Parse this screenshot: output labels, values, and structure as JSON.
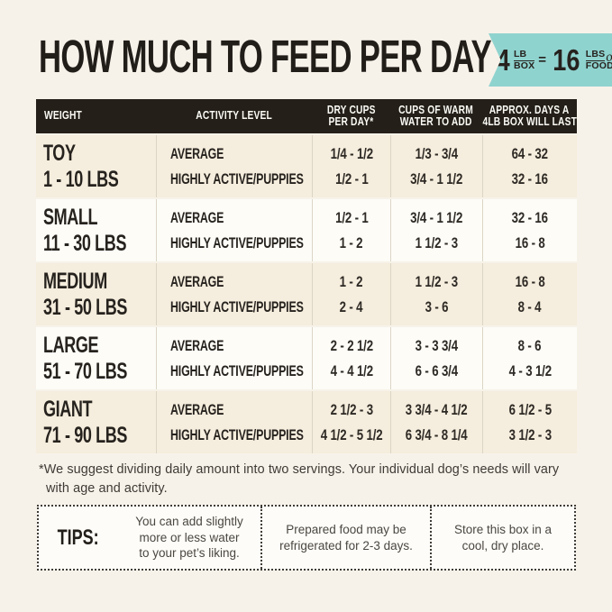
{
  "header": {
    "title": "HOW MUCH TO FEED PER DAY",
    "badge": {
      "left_qty": "4",
      "left_unit_top": "LB",
      "left_unit_bottom": "BOX",
      "equals": "=",
      "right_qty": "16",
      "right_unit_top": "LBS",
      "right_unit_script": "of",
      "right_unit_bottom": "FOOD!"
    }
  },
  "table": {
    "columns": {
      "weight": "WEIGHT",
      "activity": "ACTIVITY LEVEL",
      "cups_line1": "DRY CUPS",
      "cups_line2": "PER DAY*",
      "water_line1": "CUPS OF WARM",
      "water_line2": "WATER TO ADD",
      "days_line1": "APPROX. DAYS A",
      "days_line2": "4LB BOX WILL LAST"
    },
    "rows": [
      {
        "weight_name": "TOY",
        "weight_range": "1 - 10 LBS",
        "activity_avg": "AVERAGE",
        "activity_high": "HIGHLY ACTIVE/PUPPIES",
        "cups_avg": "1/4 - 1/2",
        "cups_high": "1/2 - 1",
        "water_avg": "1/3 - 3/4",
        "water_high": "3/4 - 1 1/2",
        "days_avg": "64 - 32",
        "days_high": "32 - 16"
      },
      {
        "weight_name": "SMALL",
        "weight_range": "11 - 30 LBS",
        "activity_avg": "AVERAGE",
        "activity_high": "HIGHLY ACTIVE/PUPPIES",
        "cups_avg": "1/2 - 1",
        "cups_high": "1 - 2",
        "water_avg": "3/4 - 1 1/2",
        "water_high": "1 1/2 - 3",
        "days_avg": "32 - 16",
        "days_high": "16 - 8"
      },
      {
        "weight_name": "MEDIUM",
        "weight_range": "31 - 50 LBS",
        "activity_avg": "AVERAGE",
        "activity_high": "HIGHLY ACTIVE/PUPPIES",
        "cups_avg": "1 - 2",
        "cups_high": "2 - 4",
        "water_avg": "1 1/2 - 3",
        "water_high": "3 - 6",
        "days_avg": "16 - 8",
        "days_high": "8 - 4"
      },
      {
        "weight_name": "LARGE",
        "weight_range": "51 - 70 LBS",
        "activity_avg": "AVERAGE",
        "activity_high": "HIGHLY ACTIVE/PUPPIES",
        "cups_avg": "2 - 2 1/2",
        "cups_high": "4 - 4 1/2",
        "water_avg": "3 - 3 3/4",
        "water_high": "6 - 6 3/4",
        "days_avg": "8 - 6",
        "days_high": "4 - 3 1/2"
      },
      {
        "weight_name": "GIANT",
        "weight_range": "71 - 90 LBS",
        "activity_avg": "AVERAGE",
        "activity_high": "HIGHLY ACTIVE/PUPPIES",
        "cups_avg": "2 1/2 - 3",
        "cups_high": "4 1/2 - 5 1/2",
        "water_avg": "3 3/4 - 4 1/2",
        "water_high": "6 3/4 - 8 1/4",
        "days_avg": "6 1/2 - 5",
        "days_high": "3 1/2 - 3"
      }
    ]
  },
  "footnote": "*We suggest dividing daily amount into two servings. Your individual dog’s needs will vary with age and activity.",
  "tips": {
    "label": "TIPS:",
    "items": [
      "You can add slightly more or less water to your pet’s liking.",
      "Prepared food may be refrigerated for 2-3 days.",
      "Store this box in a cool, dry place."
    ]
  },
  "colors": {
    "page_background": "#f7f2e9",
    "header_bar": "#242019",
    "row_cream": "#f5eddd",
    "row_white": "#fdfcf7",
    "badge_teal": "#8fd3cf",
    "text_dark": "#26221e",
    "text_gray": "#4b4741"
  }
}
